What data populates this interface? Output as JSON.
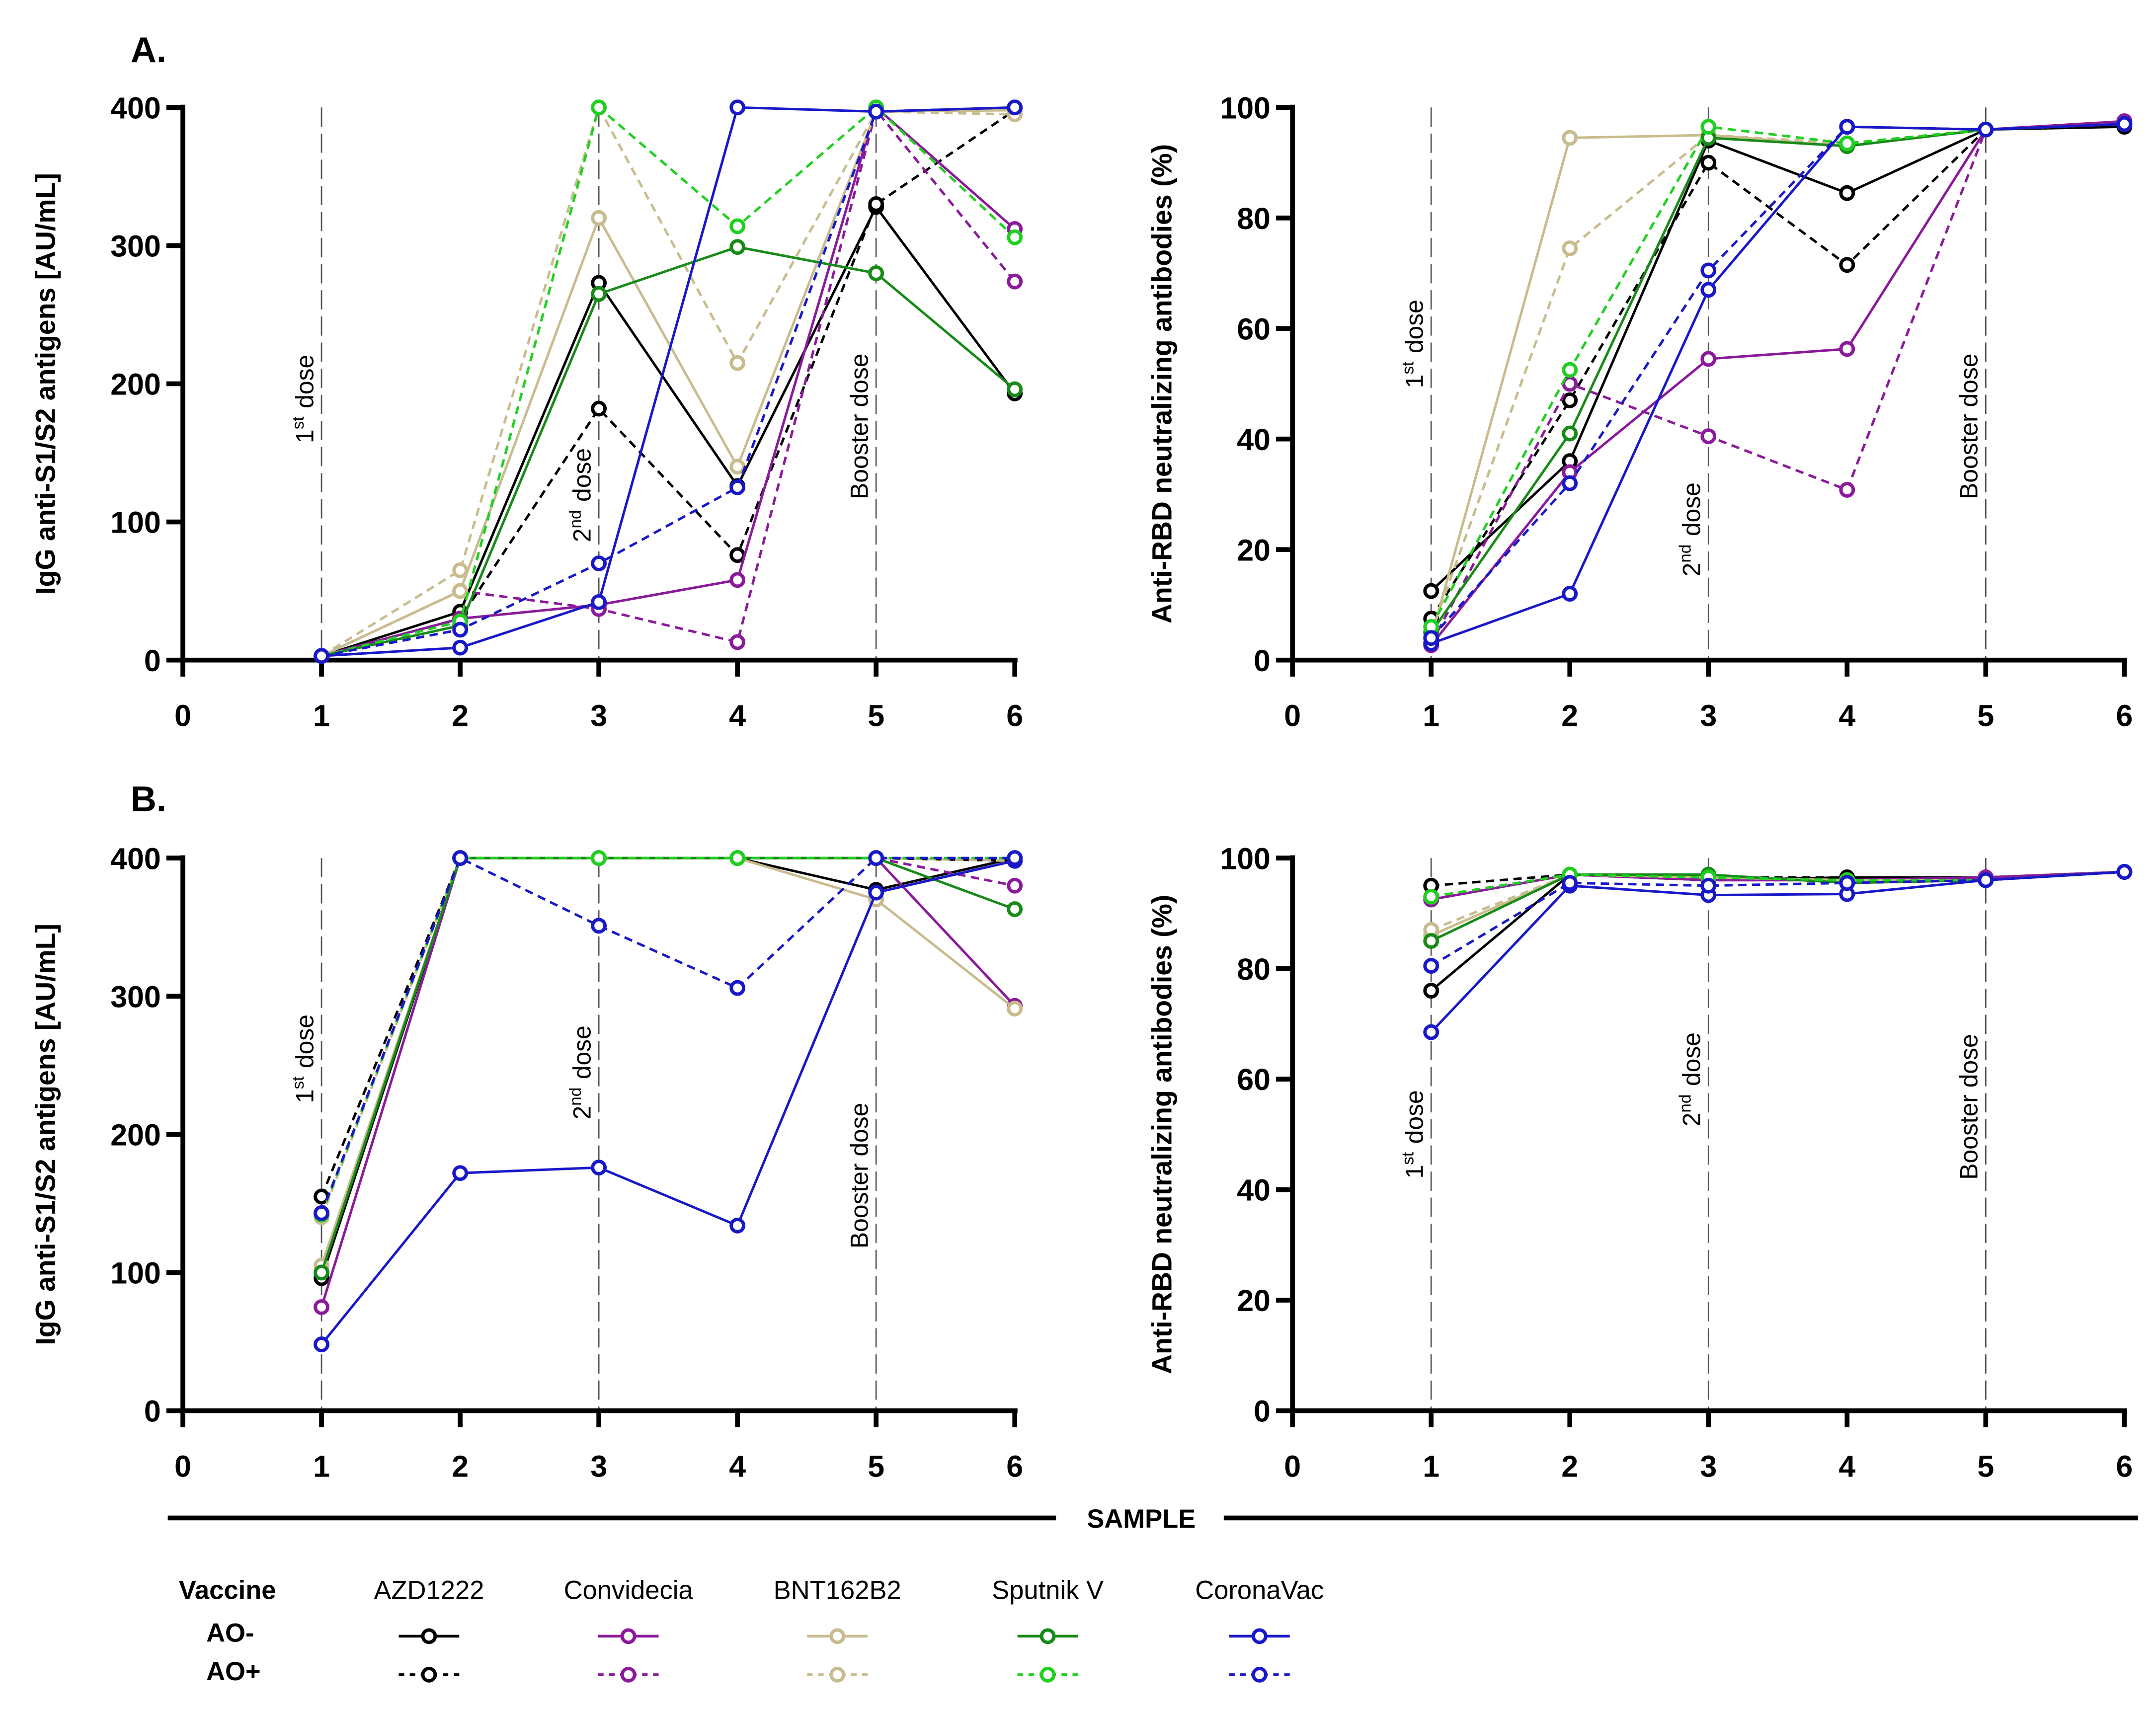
{
  "figure": {
    "xlabel": "SAMPLE",
    "legend": {
      "title": "Vaccine",
      "vaccines": [
        "AZD1222",
        "Convidecia",
        "BNT162B2",
        "Sputnik V",
        "CoronaVac"
      ],
      "groups": [
        "AO-",
        "AO+"
      ]
    },
    "dose_labels": {
      "first_num": "1",
      "first_sup": "st",
      "second_num": "2",
      "second_sup": "nd",
      "dose_word": "dose",
      "booster": "Booster dose"
    }
  },
  "colors": {
    "AZD1222": {
      "AO-": "#000000",
      "AO+": "#000000"
    },
    "Convidecia": {
      "AO-": "#8B1A9B",
      "AO+": "#8B1A9B"
    },
    "BNT162B2": {
      "AO-": "#C8BC8E",
      "AO+": "#C8BC8E"
    },
    "Sputnik V": {
      "AO-": "#178A17",
      "AO+": "#1FD01F"
    },
    "CoronaVac": {
      "AO-": "#1818C8",
      "AO+": "#1818C8"
    }
  },
  "chart_data": [
    {
      "type": "line",
      "panel": "A.",
      "ylabel": "IgG anti-S1/S2 antigens [AU/mL]",
      "xlabel": "SAMPLE",
      "xlim": [
        0,
        6
      ],
      "ylim": [
        0,
        400
      ],
      "xticks": [
        "0",
        "1",
        "2",
        "3",
        "4",
        "5",
        "6"
      ],
      "yticks": [
        "0",
        "100",
        "200",
        "300",
        "400"
      ],
      "x": [
        1,
        2,
        3,
        4,
        5,
        6
      ],
      "dose_markers_at": [
        1,
        3,
        5
      ],
      "series": [
        {
          "vaccine": "AZD1222",
          "group": "AO-",
          "values": [
            3,
            35,
            273,
            126,
            328,
            193
          ]
        },
        {
          "vaccine": "AZD1222",
          "group": "AO+",
          "values": [
            3,
            30,
            182,
            76,
            330,
            398
          ]
        },
        {
          "vaccine": "Convidecia",
          "group": "AO-",
          "values": [
            3,
            30,
            40,
            58,
            400,
            312
          ]
        },
        {
          "vaccine": "Convidecia",
          "group": "AO+",
          "values": [
            3,
            50,
            37,
            13,
            398,
            274
          ]
        },
        {
          "vaccine": "BNT162B2",
          "group": "AO-",
          "values": [
            3,
            50,
            320,
            140,
            397,
            398
          ]
        },
        {
          "vaccine": "BNT162B2",
          "group": "AO+",
          "values": [
            3,
            65,
            400,
            215,
            397,
            395
          ]
        },
        {
          "vaccine": "Sputnik V",
          "group": "AO-",
          "values": [
            3,
            25,
            265,
            299,
            280,
            196
          ]
        },
        {
          "vaccine": "Sputnik V",
          "group": "AO+",
          "values": [
            3,
            28,
            400,
            314,
            400,
            306
          ]
        },
        {
          "vaccine": "CoronaVac",
          "group": "AO-",
          "values": [
            3,
            9,
            42,
            400,
            397,
            400
          ]
        },
        {
          "vaccine": "CoronaVac",
          "group": "AO+",
          "values": [
            3,
            22,
            70,
            125,
            397,
            400
          ]
        }
      ]
    },
    {
      "type": "line",
      "panel": "",
      "ylabel": "Anti-RBD neutralizing antibodies (%)",
      "xlabel": "SAMPLE",
      "xlim": [
        0,
        6
      ],
      "ylim": [
        0,
        100
      ],
      "xticks": [
        "0",
        "1",
        "2",
        "3",
        "4",
        "5",
        "6"
      ],
      "yticks": [
        "0",
        "20",
        "40",
        "60",
        "80",
        "100"
      ],
      "x": [
        1,
        2,
        3,
        4,
        5,
        6
      ],
      "dose_markers_at": [
        1,
        3,
        5
      ],
      "series": [
        {
          "vaccine": "AZD1222",
          "group": "AO-",
          "values": [
            12.5,
            36,
            94,
            84.5,
            96,
            96.5
          ]
        },
        {
          "vaccine": "AZD1222",
          "group": "AO+",
          "values": [
            7.5,
            47,
            90,
            71.5,
            96,
            97
          ]
        },
        {
          "vaccine": "Convidecia",
          "group": "AO-",
          "values": [
            2.7,
            34,
            54.5,
            56.3,
            96,
            97.5
          ]
        },
        {
          "vaccine": "Convidecia",
          "group": "AO+",
          "values": [
            3,
            50,
            40.5,
            30.8,
            96,
            97.5
          ]
        },
        {
          "vaccine": "BNT162B2",
          "group": "AO-",
          "values": [
            4,
            94.5,
            95,
            93,
            96,
            97
          ]
        },
        {
          "vaccine": "BNT162B2",
          "group": "AO+",
          "values": [
            5,
            74.5,
            95,
            93.5,
            96,
            97
          ]
        },
        {
          "vaccine": "Sputnik V",
          "group": "AO-",
          "values": [
            5,
            41,
            94.5,
            93,
            96,
            97
          ]
        },
        {
          "vaccine": "Sputnik V",
          "group": "AO+",
          "values": [
            6,
            52.5,
            96.5,
            93.5,
            96,
            97
          ]
        },
        {
          "vaccine": "CoronaVac",
          "group": "AO-",
          "values": [
            3,
            12,
            67,
            96.5,
            96,
            97
          ]
        },
        {
          "vaccine": "CoronaVac",
          "group": "AO+",
          "values": [
            4,
            32,
            70.5,
            96.5,
            96,
            97
          ]
        }
      ]
    },
    {
      "type": "line",
      "panel": "B.",
      "ylabel": "IgG anti-S1/S2 antigens [AU/mL]",
      "xlabel": "SAMPLE",
      "xlim": [
        0,
        6
      ],
      "ylim": [
        0,
        400
      ],
      "xticks": [
        "0",
        "1",
        "2",
        "3",
        "4",
        "5",
        "6"
      ],
      "yticks": [
        "0",
        "100",
        "200",
        "300",
        "400"
      ],
      "x": [
        1,
        2,
        3,
        4,
        5,
        6
      ],
      "dose_markers_at": [
        1,
        3,
        5
      ],
      "series": [
        {
          "vaccine": "AZD1222",
          "group": "AO-",
          "values": [
            96,
            400,
            400,
            400,
            377,
            400
          ]
        },
        {
          "vaccine": "AZD1222",
          "group": "AO+",
          "values": [
            155,
            400,
            400,
            400,
            400,
            398
          ]
        },
        {
          "vaccine": "Convidecia",
          "group": "AO-",
          "values": [
            75,
            400,
            400,
            400,
            400,
            293
          ]
        },
        {
          "vaccine": "Convidecia",
          "group": "AO+",
          "values": [
            143,
            400,
            400,
            400,
            400,
            380
          ]
        },
        {
          "vaccine": "BNT162B2",
          "group": "AO-",
          "values": [
            105,
            400,
            400,
            400,
            370,
            291
          ]
        },
        {
          "vaccine": "BNT162B2",
          "group": "AO+",
          "values": [
            140,
            400,
            400,
            400,
            400,
            398
          ]
        },
        {
          "vaccine": "Sputnik V",
          "group": "AO-",
          "values": [
            100,
            400,
            400,
            400,
            400,
            363
          ]
        },
        {
          "vaccine": "Sputnik V",
          "group": "AO+",
          "values": [
            142,
            400,
            400,
            400,
            400,
            400
          ]
        },
        {
          "vaccine": "CoronaVac",
          "group": "AO-",
          "values": [
            48,
            172,
            176,
            134,
            375,
            398
          ]
        },
        {
          "vaccine": "CoronaVac",
          "group": "AO+",
          "values": [
            143,
            400,
            351,
            306,
            400,
            400
          ]
        }
      ]
    },
    {
      "type": "line",
      "panel": "",
      "ylabel": "Anti-RBD neutralizing antibodies (%)",
      "xlabel": "SAMPLE",
      "xlim": [
        0,
        6
      ],
      "ylim": [
        0,
        100
      ],
      "xticks": [
        "0",
        "1",
        "2",
        "3",
        "4",
        "5",
        "6"
      ],
      "yticks": [
        "0",
        "20",
        "40",
        "60",
        "80",
        "100"
      ],
      "x": [
        1,
        2,
        3,
        4,
        5,
        6
      ],
      "dose_markers_at": [
        1,
        3,
        5
      ],
      "series": [
        {
          "vaccine": "AZD1222",
          "group": "AO-",
          "values": [
            76,
            97,
            96,
            96.5,
            96.5,
            97.5
          ]
        },
        {
          "vaccine": "AZD1222",
          "group": "AO+",
          "values": [
            95,
            97,
            96.5,
            96.5,
            96.5,
            97.5
          ]
        },
        {
          "vaccine": "Convidecia",
          "group": "AO-",
          "values": [
            92.5,
            97,
            96,
            96,
            96.5,
            97.5
          ]
        },
        {
          "vaccine": "Convidecia",
          "group": "AO+",
          "values": [
            93,
            97,
            96,
            96,
            96.5,
            97.5
          ]
        },
        {
          "vaccine": "BNT162B2",
          "group": "AO-",
          "values": [
            86,
            97,
            96.5,
            96,
            96,
            97.5
          ]
        },
        {
          "vaccine": "BNT162B2",
          "group": "AO+",
          "values": [
            87,
            97,
            96.5,
            96,
            96,
            97.5
          ]
        },
        {
          "vaccine": "Sputnik V",
          "group": "AO-",
          "values": [
            85,
            97,
            97,
            95.5,
            96,
            97.5
          ]
        },
        {
          "vaccine": "Sputnik V",
          "group": "AO+",
          "values": [
            93,
            97,
            96.5,
            96,
            96,
            97.5
          ]
        },
        {
          "vaccine": "CoronaVac",
          "group": "AO-",
          "values": [
            68.5,
            95,
            93.3,
            93.5,
            96,
            97.5
          ]
        },
        {
          "vaccine": "CoronaVac",
          "group": "AO+",
          "values": [
            80.5,
            95.5,
            95,
            95.5,
            96,
            97.5
          ]
        }
      ]
    }
  ]
}
